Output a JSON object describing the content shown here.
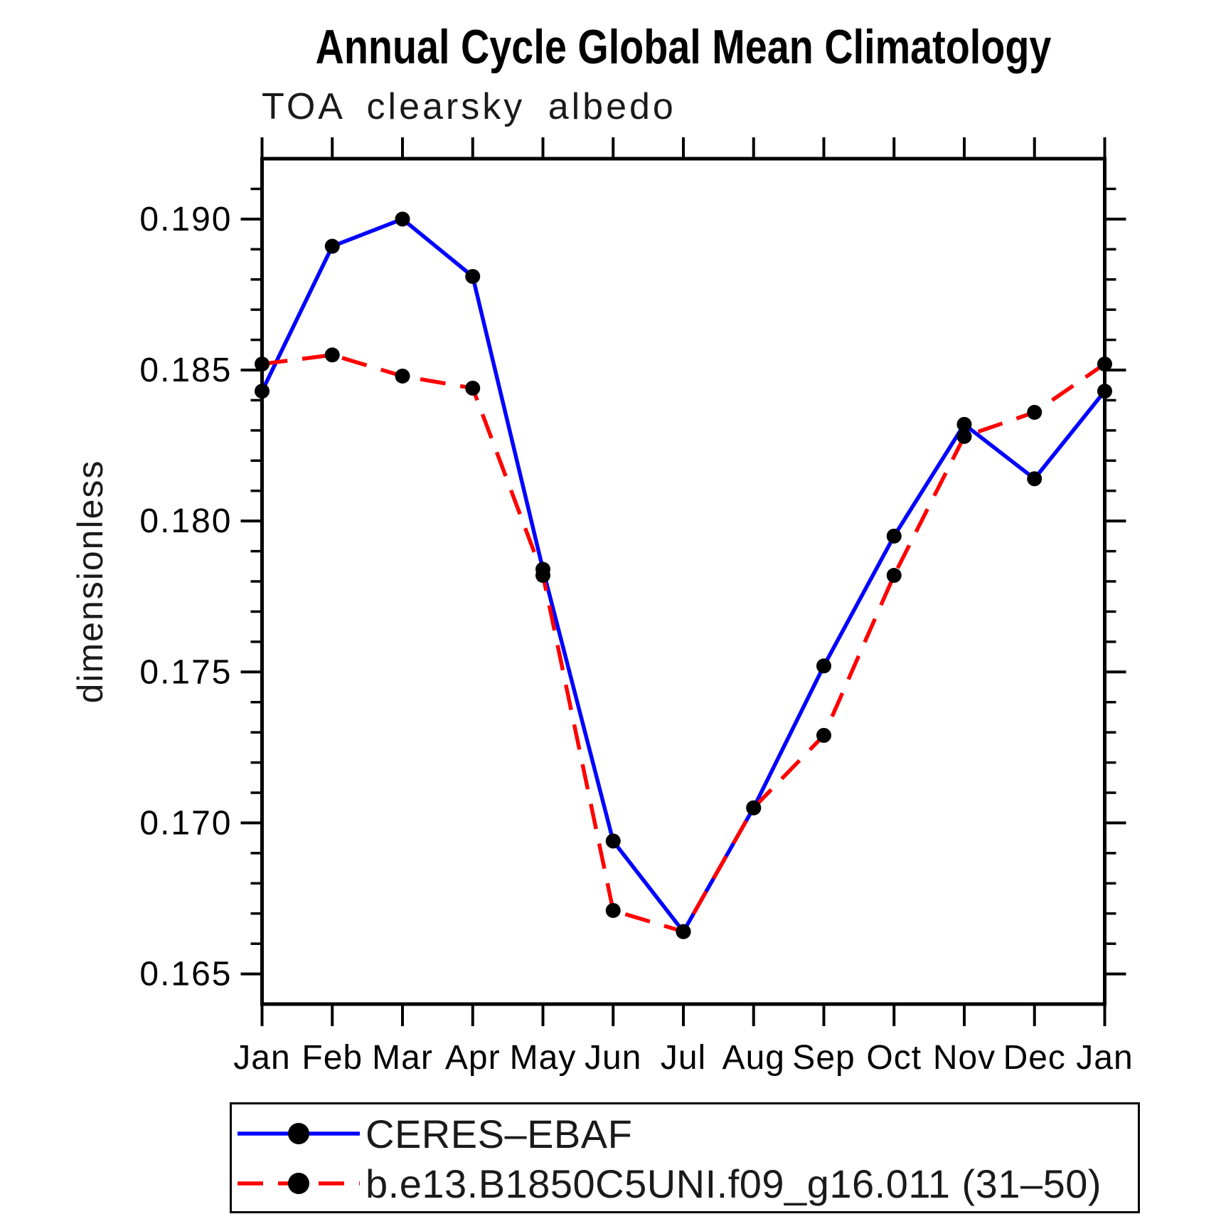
{
  "chart_data": {
    "type": "line",
    "title": "Annual Cycle Global Mean Climatology",
    "subtitle": "TOA clearsky albedo",
    "ylabel": "dimensionless",
    "xlabel": "",
    "categories": [
      "Jan",
      "Feb",
      "Mar",
      "Apr",
      "May",
      "Jun",
      "Jul",
      "Aug",
      "Sep",
      "Oct",
      "Nov",
      "Dec",
      "Jan"
    ],
    "ylim": [
      0.164,
      0.192
    ],
    "y_major_ticks": [
      0.165,
      0.17,
      0.175,
      0.18,
      0.185,
      0.19
    ],
    "y_tick_labels": [
      "0.165",
      "0.170",
      "0.175",
      "0.180",
      "0.185",
      "0.190"
    ],
    "y_minor_tick_step": 0.001,
    "grid": false,
    "tick_style": "outward-all-four-sides",
    "legend_position": "bottom-left-box",
    "axis_color": "#000000",
    "text_color": "#000000",
    "series": [
      {
        "name": "CERES–EBAF",
        "color": "#0000ff",
        "line_style": "solid",
        "marker": "filled-circle",
        "marker_color": "#000000",
        "values": [
          0.1843,
          0.1891,
          0.19,
          0.1881,
          0.1784,
          0.1694,
          0.1664,
          0.1705,
          0.1752,
          0.1795,
          0.1832,
          0.1814,
          0.1843
        ]
      },
      {
        "name": "b.e13.B1850C5UNI.f09_g16.011 (31–50)",
        "color": "#ff0000",
        "line_style": "dashed",
        "marker": "filled-circle",
        "marker_color": "#000000",
        "values": [
          0.1852,
          0.1855,
          0.1848,
          0.1844,
          0.1782,
          0.1671,
          0.1664,
          0.1705,
          0.1729,
          0.1782,
          0.1828,
          0.1836,
          0.1852
        ]
      }
    ]
  }
}
